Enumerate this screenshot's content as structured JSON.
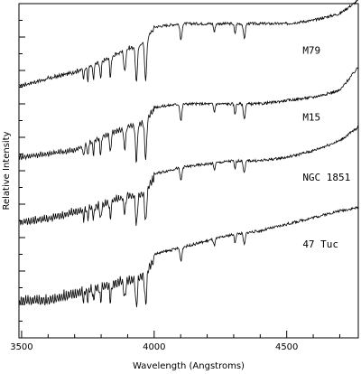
{
  "chart_data": {
    "type": "line",
    "title": "",
    "xlabel": "Wavelength (Angstroms)",
    "ylabel": "Relative Intensity",
    "xlim": [
      3490,
      4770
    ],
    "ylim": [
      0,
      1
    ],
    "x_ticks": [
      3500,
      4000,
      4500
    ],
    "x_tick_labels": [
      "3500",
      "4000",
      "4500"
    ],
    "grid": false,
    "line_color": "#000000",
    "absorption_lines_angstrom": [
      3734,
      3750,
      3771,
      3798,
      3835,
      3889,
      3933,
      3968,
      4101,
      4227,
      4305,
      4340
    ],
    "series": [
      {
        "label": "M79",
        "offset": 0.76,
        "x": [
          3500,
          3600,
          3700,
          3800,
          3900,
          3950,
          4000,
          4100,
          4200,
          4300,
          4400,
          4500,
          4600,
          4700,
          4770
        ],
        "y": [
          0.0,
          0.02,
          0.04,
          0.07,
          0.11,
          0.12,
          0.17,
          0.18,
          0.18,
          0.18,
          0.18,
          0.18,
          0.19,
          0.21,
          0.25
        ]
      },
      {
        "label": "M15",
        "offset": 0.55,
        "x": [
          3500,
          3600,
          3700,
          3800,
          3900,
          3950,
          4000,
          4100,
          4200,
          4300,
          4400,
          4500,
          4600,
          4700,
          4770
        ],
        "y": [
          0.0,
          0.01,
          0.02,
          0.06,
          0.09,
          0.1,
          0.14,
          0.15,
          0.15,
          0.15,
          0.15,
          0.16,
          0.17,
          0.19,
          0.26
        ]
      },
      {
        "label": "NGC 1851",
        "offset": 0.36,
        "x": [
          3500,
          3600,
          3700,
          3800,
          3900,
          3950,
          4000,
          4100,
          4200,
          4300,
          4400,
          4500,
          4600,
          4700,
          4770
        ],
        "y": [
          0.0,
          0.01,
          0.03,
          0.05,
          0.08,
          0.08,
          0.13,
          0.15,
          0.16,
          0.17,
          0.17,
          0.18,
          0.2,
          0.23,
          0.27
        ]
      },
      {
        "label": "47 Tuc",
        "offset": 0.13,
        "x": [
          3500,
          3600,
          3700,
          3800,
          3900,
          3950,
          4000,
          4100,
          4200,
          4300,
          4400,
          4500,
          4600,
          4700,
          4770
        ],
        "y": [
          0.0,
          0.0,
          0.02,
          0.04,
          0.06,
          0.07,
          0.12,
          0.14,
          0.16,
          0.18,
          0.19,
          0.21,
          0.23,
          0.25,
          0.26
        ]
      }
    ]
  }
}
